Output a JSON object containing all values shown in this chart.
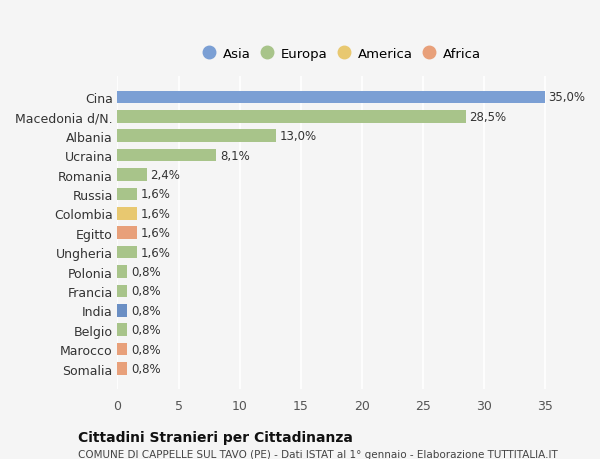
{
  "categories": [
    "Somalia",
    "Marocco",
    "Belgio",
    "India",
    "Francia",
    "Polonia",
    "Ungheria",
    "Egitto",
    "Colombia",
    "Russia",
    "Romania",
    "Ucraina",
    "Albania",
    "Macedonia d/N.",
    "Cina"
  ],
  "values": [
    0.8,
    0.8,
    0.8,
    0.8,
    0.8,
    0.8,
    1.6,
    1.6,
    1.6,
    1.6,
    2.4,
    8.1,
    13.0,
    28.5,
    35.0
  ],
  "labels": [
    "0,8%",
    "0,8%",
    "0,8%",
    "0,8%",
    "0,8%",
    "0,8%",
    "1,6%",
    "1,6%",
    "1,6%",
    "1,6%",
    "2,4%",
    "8,1%",
    "13,0%",
    "28,5%",
    "35,0%"
  ],
  "colors": [
    "#e8a07a",
    "#e8a07a",
    "#a8c48a",
    "#6b8fc4",
    "#a8c48a",
    "#a8c48a",
    "#a8c48a",
    "#e8a07a",
    "#e8c870",
    "#a8c48a",
    "#a8c48a",
    "#a8c48a",
    "#a8c48a",
    "#a8c48a",
    "#7b9fd4"
  ],
  "legend": [
    {
      "label": "Asia",
      "color": "#7b9fd4"
    },
    {
      "label": "Europa",
      "color": "#a8c48a"
    },
    {
      "label": "America",
      "color": "#e8c870"
    },
    {
      "label": "Africa",
      "color": "#e8a07a"
    }
  ],
  "title": "Cittadini Stranieri per Cittadinanza",
  "subtitle": "COMUNE DI CAPPELLE SUL TAVO (PE) - Dati ISTAT al 1° gennaio - Elaborazione TUTTITALIA.IT",
  "xlim": [
    0,
    37
  ],
  "xticks": [
    0,
    5,
    10,
    15,
    20,
    25,
    30,
    35
  ],
  "bg_color": "#f5f5f5",
  "bar_height": 0.65
}
